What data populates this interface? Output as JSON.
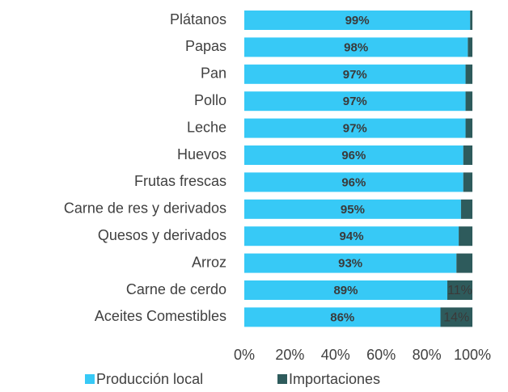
{
  "chart_data": {
    "type": "stacked-barh",
    "categories": [
      "Plátanos",
      "Papas",
      "Pan",
      "Pollo",
      "Leche",
      "Huevos",
      "Frutas frescas",
      "Carne de res y derivados",
      "Quesos y derivados",
      "Arroz",
      "Carne de cerdo",
      "Aceites Comestibles"
    ],
    "series": [
      {
        "name": "Producción local",
        "color": "#37c9f6",
        "values": [
          99,
          98,
          97,
          97,
          97,
          96,
          96,
          95,
          94,
          93,
          89,
          86
        ],
        "value_labels": [
          "99%",
          "98%",
          "97%",
          "97%",
          "97%",
          "96%",
          "96%",
          "95%",
          "94%",
          "93%",
          "89%",
          "86%"
        ]
      },
      {
        "name": "Importaciones",
        "color": "#2e5b5c",
        "values": [
          1,
          2,
          3,
          3,
          3,
          4,
          4,
          5,
          6,
          7,
          11,
          14
        ],
        "value_labels": [
          null,
          null,
          null,
          null,
          null,
          null,
          null,
          null,
          null,
          null,
          "11%",
          "14%"
        ]
      }
    ],
    "xlim": [
      0,
      100
    ],
    "xticks": [
      {
        "value": 0,
        "label": "0%"
      },
      {
        "value": 20,
        "label": "20%"
      },
      {
        "value": 40,
        "label": "40%"
      },
      {
        "value": 60,
        "label": "60%"
      },
      {
        "value": 80,
        "label": "80%"
      },
      {
        "value": 100,
        "label": "100%"
      }
    ],
    "legend": "bottom"
  }
}
